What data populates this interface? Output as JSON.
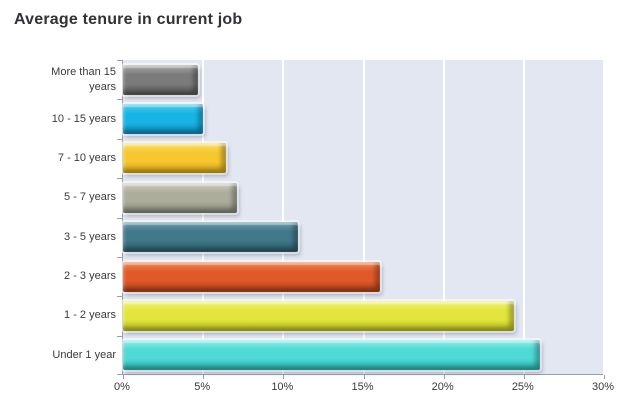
{
  "title": "Average tenure in current job",
  "chart_data": {
    "type": "bar",
    "orientation": "horizontal",
    "title": "Average tenure in current job",
    "xlabel": "",
    "ylabel": "",
    "xlim": [
      0,
      30
    ],
    "x_tick_values": [
      0,
      5,
      10,
      15,
      20,
      25,
      30
    ],
    "x_tick_labels": [
      "0%",
      "5%",
      "10%",
      "15%",
      "20%",
      "25%",
      "30%"
    ],
    "grid": true,
    "legend": false,
    "unit": "%",
    "plot_background": "#e3e7f1",
    "gridline_color": "#ffffff",
    "axis_color": "#9aa0a8",
    "title_color": "#323236",
    "bars": [
      {
        "label": "More than 15 years",
        "value": 4.7,
        "color": "#7b7b7b",
        "light": "#a8a8a8",
        "dark": "#545454"
      },
      {
        "label": "10 - 15 years",
        "value": 5.0,
        "color": "#18b4e4",
        "light": "#55cdf1",
        "dark": "#0b85b5"
      },
      {
        "label": "7 - 10 years",
        "value": 6.4,
        "color": "#f6c72f",
        "light": "#fbdf6e",
        "dark": "#cf9f15"
      },
      {
        "label": "5 - 7 years",
        "value": 7.1,
        "color": "#acad9a",
        "light": "#cccdc0",
        "dark": "#808273"
      },
      {
        "label": "3 - 5 years",
        "value": 10.9,
        "color": "#41788a",
        "light": "#6fa0ae",
        "dark": "#2a5864"
      },
      {
        "label": "2 - 3 years",
        "value": 16.0,
        "color": "#e0592a",
        "light": "#f08b55",
        "dark": "#a93d14"
      },
      {
        "label": "1 - 2 years",
        "value": 24.4,
        "color": "#e3e53c",
        "light": "#f0f282",
        "dark": "#b4b71d"
      },
      {
        "label": "Under 1 year",
        "value": 26.0,
        "color": "#4edad5",
        "light": "#8fece8",
        "dark": "#27aeaa"
      }
    ]
  }
}
